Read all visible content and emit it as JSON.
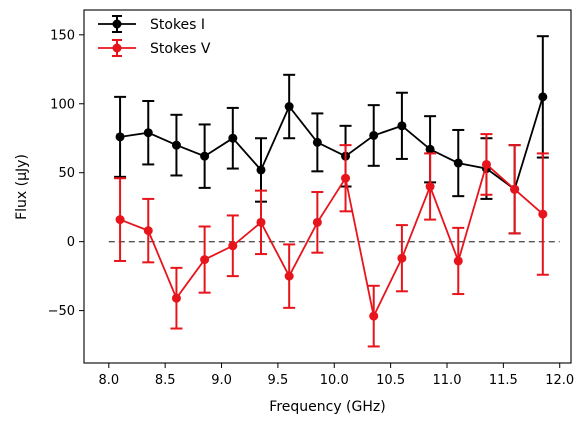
{
  "chart_data": {
    "type": "line",
    "xlabel": "Frequency (GHz)",
    "ylabel": "Flux (μJy)",
    "xlim": [
      7.78,
      12.1
    ],
    "ylim": [
      -88,
      168
    ],
    "xticks": [
      "8.0",
      "8.5",
      "9.0",
      "9.5",
      "10.0",
      "10.5",
      "11.0",
      "11.5",
      "12.0"
    ],
    "yticks": [
      "−50",
      "0",
      "50",
      "100",
      "150"
    ],
    "grid": false,
    "legend_position": "top-left",
    "reference_line": {
      "y": 0,
      "style": "dashed",
      "color": "#555555"
    },
    "x": [
      8.1,
      8.35,
      8.6,
      8.85,
      9.1,
      9.35,
      9.6,
      9.85,
      10.1,
      10.35,
      10.6,
      10.85,
      11.1,
      11.35,
      11.6,
      11.85
    ],
    "series": [
      {
        "name": "Stokes I",
        "color": "#000000",
        "values": [
          76,
          79,
          70,
          62,
          75,
          52,
          98,
          72,
          62,
          77,
          84,
          67,
          57,
          53,
          38,
          105
        ],
        "errors": [
          29,
          23,
          22,
          23,
          22,
          23,
          23,
          21,
          22,
          22,
          24,
          24,
          24,
          22,
          32,
          44
        ]
      },
      {
        "name": "Stokes V",
        "color": "#e8141b",
        "values": [
          16,
          8,
          -41,
          -13,
          -3,
          14,
          -25,
          14,
          46,
          -54,
          -12,
          40,
          -14,
          56,
          38,
          20
        ],
        "errors": [
          30,
          23,
          22,
          24,
          22,
          23,
          23,
          22,
          24,
          22,
          24,
          24,
          24,
          22,
          32,
          44
        ]
      }
    ]
  }
}
